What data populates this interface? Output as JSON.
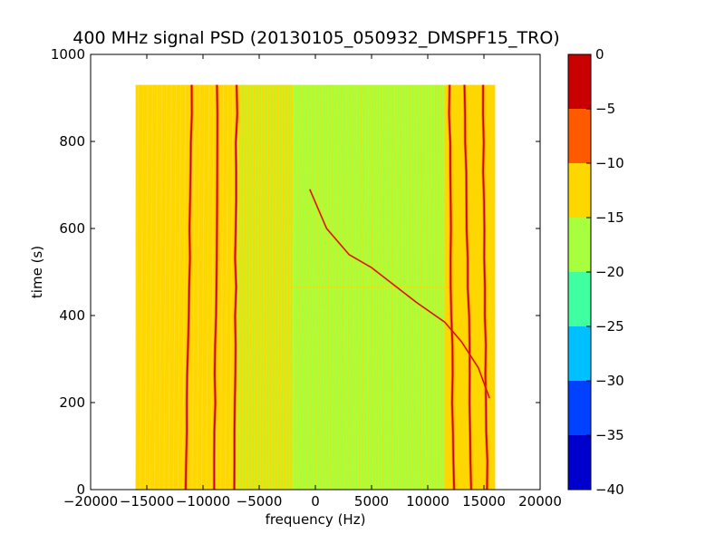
{
  "chart_data": {
    "type": "heatmap",
    "title": "400 MHz signal PSD (20130105_050932_DMSPF15_TRO)",
    "xlabel": "frequency (Hz)",
    "ylabel": "time (s)",
    "xlim": [
      -20000,
      20000
    ],
    "ylim": [
      0,
      1000
    ],
    "x_ticks": [
      -20000,
      -15000,
      -10000,
      -5000,
      0,
      5000,
      10000,
      15000,
      20000
    ],
    "x_tick_labels": [
      "−20000",
      "−15000",
      "−10000",
      "−5000",
      "0",
      "5000",
      "10000",
      "15000",
      "20000"
    ],
    "y_ticks": [
      0,
      200,
      400,
      600,
      800,
      1000
    ],
    "y_tick_labels": [
      "0",
      "200",
      "400",
      "600",
      "800",
      "1000"
    ],
    "data_extent": {
      "x": [
        -16000,
        16000
      ],
      "y": [
        0,
        930
      ]
    },
    "grid": false,
    "colorbar": {
      "levels": [
        -40,
        -35,
        -30,
        -25,
        -20,
        -15,
        -10,
        -5,
        0
      ],
      "tick_labels": [
        "−40",
        "−35",
        "−30",
        "−25",
        "−20",
        "−15",
        "−10",
        "−5",
        "0"
      ],
      "colors": [
        "#0000cd",
        "#0040ff",
        "#00c0ff",
        "#40ffa0",
        "#a8ff3e",
        "#ffd700",
        "#ff5a00",
        "#c80000"
      ]
    },
    "regions": [
      {
        "x": [
          -16000,
          -7000
        ],
        "level": "-15 to -10"
      },
      {
        "x": [
          -7000,
          -2000
        ],
        "level": "mixed -15 to -10"
      },
      {
        "x": [
          -2000,
          11500
        ],
        "level": "-20 to -15"
      },
      {
        "x": [
          11500,
          16000
        ],
        "level": "-15 to -10"
      }
    ],
    "fixed_lines": [
      {
        "x": [
          -11500,
          -11000
        ],
        "y": [
          0,
          930
        ]
      },
      {
        "x": [
          -9000,
          -8700
        ],
        "y": [
          0,
          930
        ]
      },
      {
        "x": [
          -7200,
          -7000
        ],
        "y": [
          0,
          930
        ]
      },
      {
        "x": [
          12300,
          11900
        ],
        "y": [
          0,
          930
        ]
      },
      {
        "x": [
          13900,
          13300
        ],
        "y": [
          0,
          930
        ]
      },
      {
        "x": [
          15300,
          14900
        ],
        "y": [
          0,
          930
        ]
      }
    ],
    "doppler_curve": {
      "points": [
        [
          -500,
          690
        ],
        [
          1000,
          600
        ],
        [
          3000,
          540
        ],
        [
          5000,
          510
        ],
        [
          6500,
          480
        ],
        [
          9000,
          430
        ],
        [
          11500,
          385
        ],
        [
          13000,
          340
        ],
        [
          14500,
          280
        ],
        [
          15500,
          210
        ]
      ]
    }
  }
}
